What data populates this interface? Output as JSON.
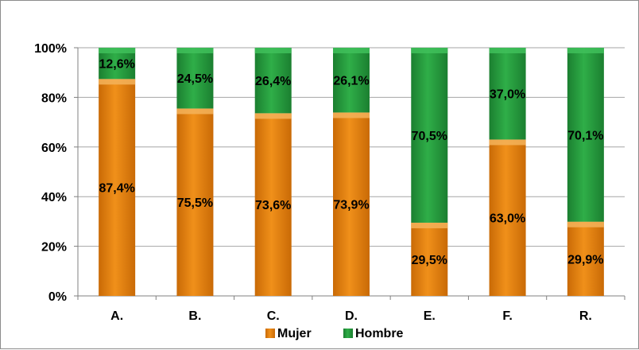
{
  "chart_data": {
    "type": "bar",
    "stacked": true,
    "percent": true,
    "categories": [
      "A.",
      "B.",
      "C.",
      "D.",
      "E.",
      "F.",
      "R."
    ],
    "series": [
      {
        "name": "Mujer",
        "values": [
          87.4,
          75.5,
          73.6,
          73.9,
          29.5,
          63.0,
          29.9
        ],
        "labels": [
          "87,4%",
          "75,5%",
          "73,6%",
          "73,9%",
          "29,5%",
          "63,0%",
          "29,9%"
        ]
      },
      {
        "name": "Hombre",
        "values": [
          12.6,
          24.5,
          26.4,
          26.1,
          70.5,
          37.0,
          70.1
        ],
        "labels": [
          "12,6%",
          "24,5%",
          "26,4%",
          "26,1%",
          "70,5%",
          "37,0%",
          "70,1%"
        ]
      }
    ],
    "yticks": [
      "0%",
      "20%",
      "40%",
      "60%",
      "80%",
      "100%"
    ],
    "ylim": [
      0,
      100
    ],
    "grid": true,
    "legend_position": "bottom",
    "colors": {
      "Mujer": "#e8820c",
      "Hombre": "#239a3b"
    }
  }
}
